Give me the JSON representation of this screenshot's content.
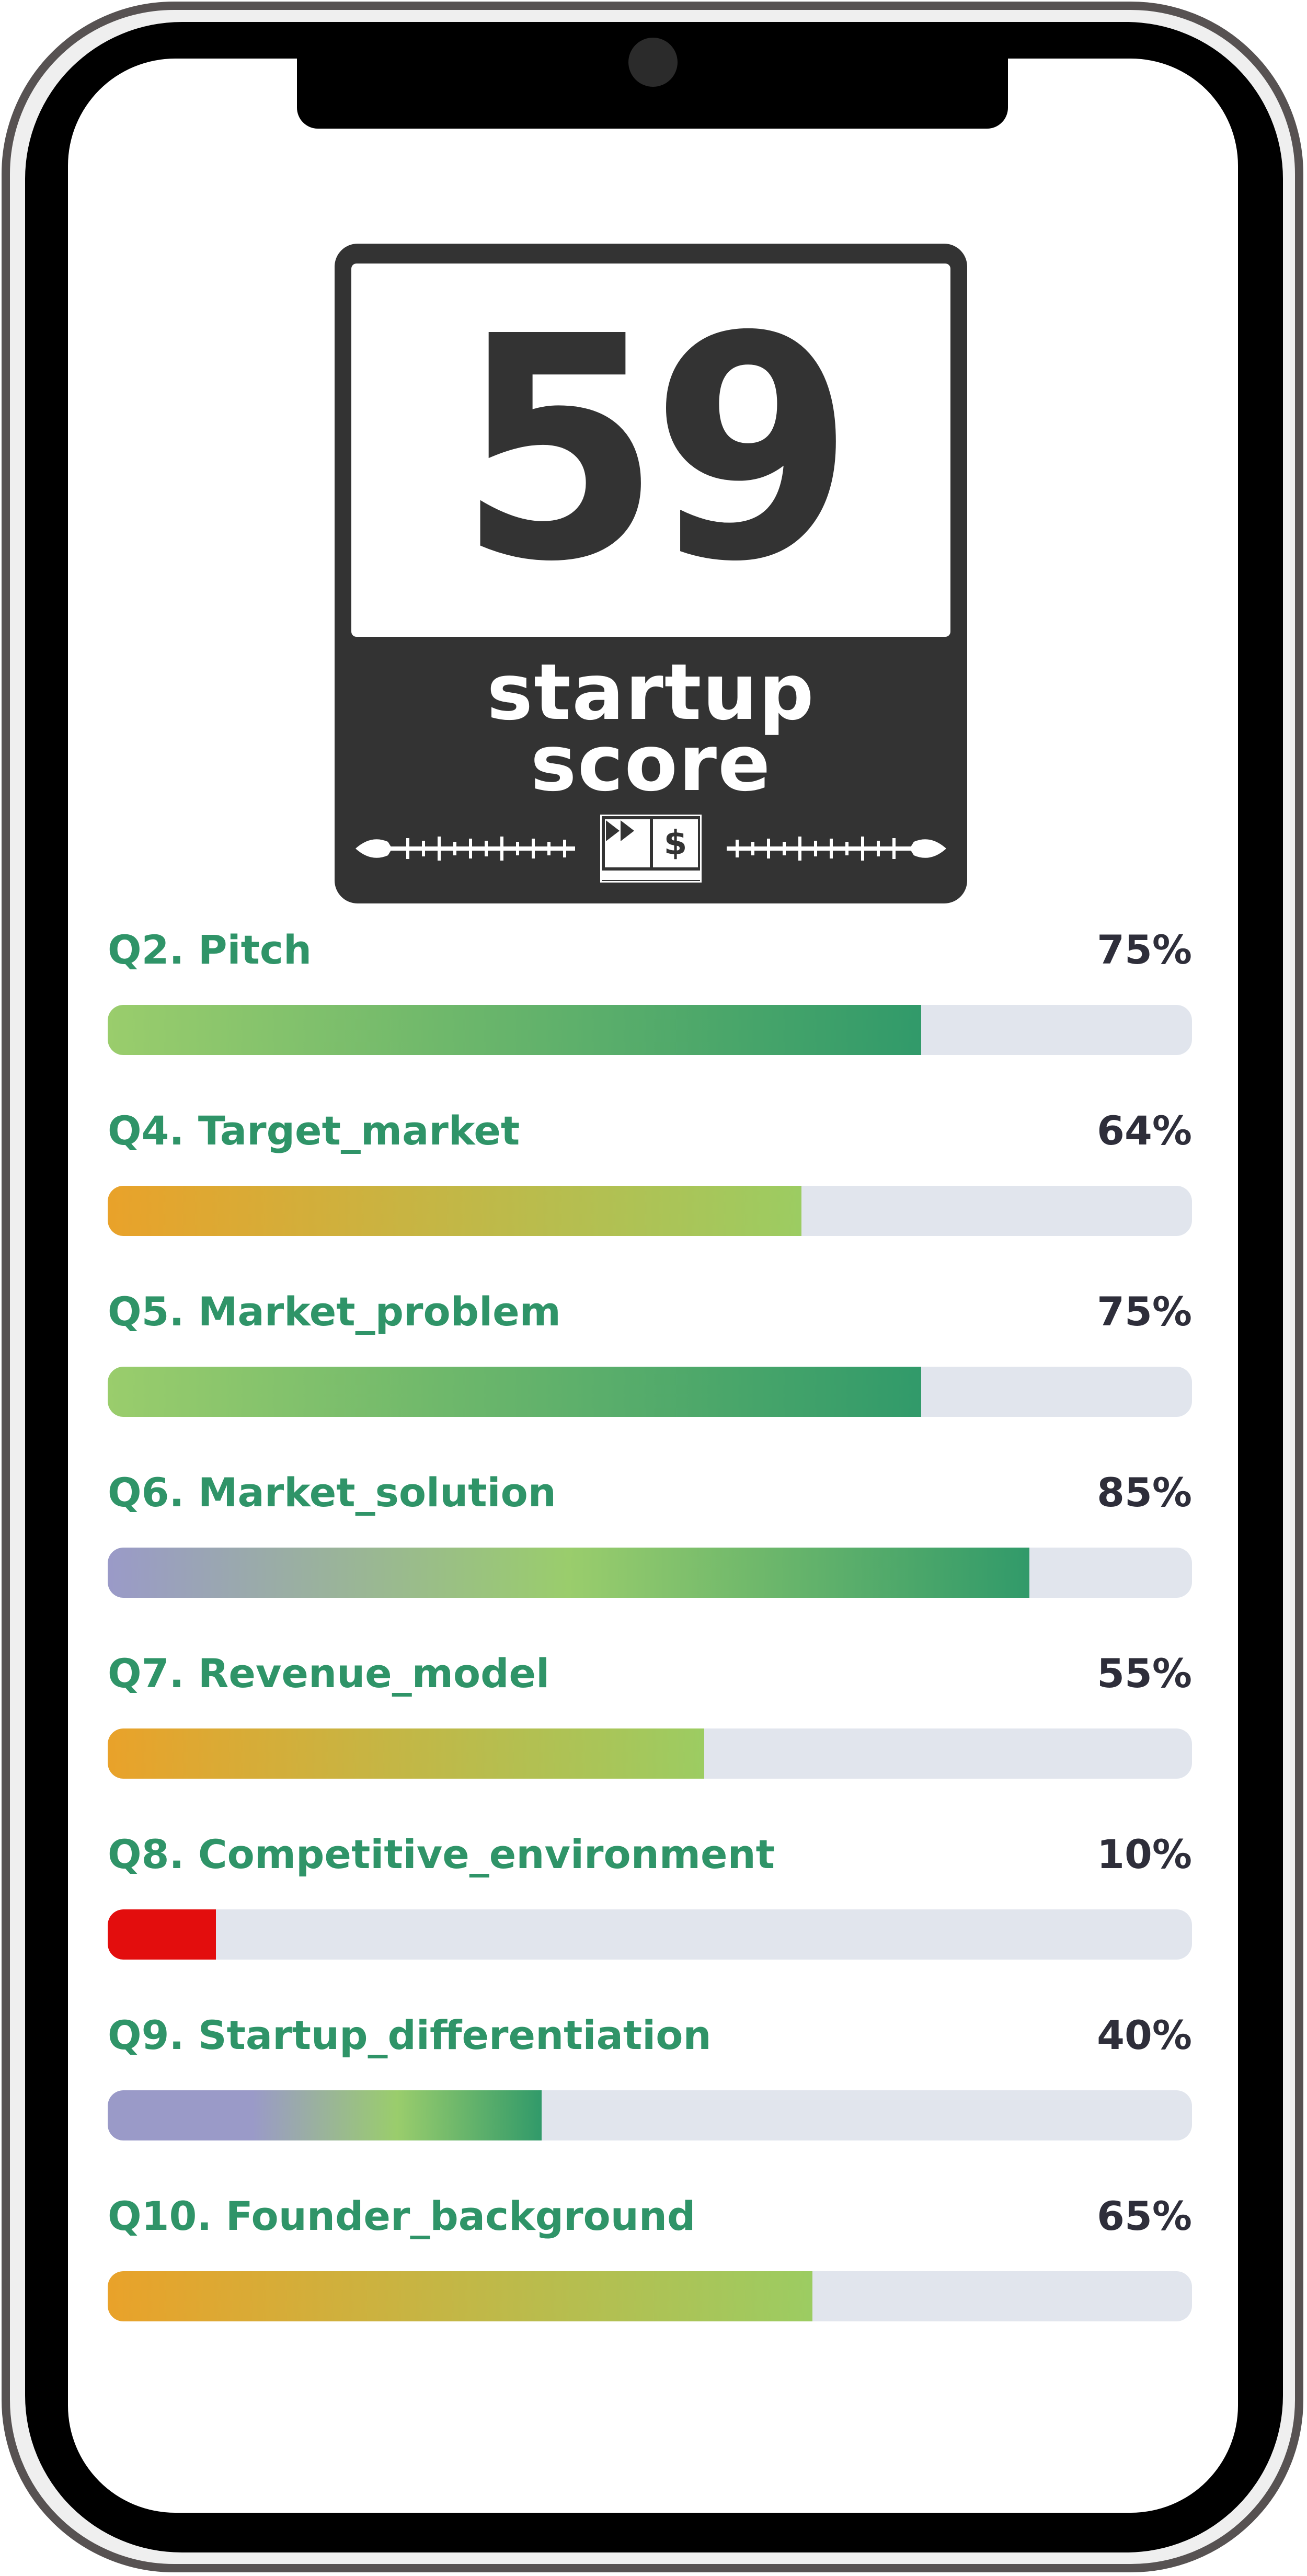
{
  "badge": {
    "score": "59",
    "title_line1": "startup",
    "title_line2": "score",
    "logo_left_icon": "fast-forward-icon",
    "logo_right_symbol": "$"
  },
  "scores": [
    {
      "label": "Q2. Pitch",
      "percent_text": "75%",
      "value": 75,
      "gradient": [
        "#9acd6c",
        "#319a6a"
      ]
    },
    {
      "label": "Q4. Target_market",
      "percent_text": "64%",
      "value": 64,
      "gradient": [
        "#e9a22a",
        "#9ccc62"
      ]
    },
    {
      "label": "Q5. Market_problem",
      "percent_text": "75%",
      "value": 75,
      "gradient": [
        "#9acd6c",
        "#319a6a"
      ]
    },
    {
      "label": "Q6. Market_solution",
      "percent_text": "85%",
      "value": 85,
      "gradient": [
        "#9a9ac8",
        "#9acd6c",
        "#319a6a"
      ]
    },
    {
      "label": "Q7. Revenue_model",
      "percent_text": "55%",
      "value": 55,
      "gradient": [
        "#e9a22a",
        "#9ccc62"
      ]
    },
    {
      "label": "Q8. Competitive_environment",
      "percent_text": "10%",
      "value": 10,
      "gradient": [
        "#e30d0d",
        "#e30d0d"
      ]
    },
    {
      "label": "Q9. Startup_differentiation",
      "percent_text": "40%",
      "value": 40,
      "gradient": [
        "#9a9ac8",
        "#9a9ac8",
        "#9acd6c",
        "#319a6a"
      ]
    },
    {
      "label": "Q10. Founder_background",
      "percent_text": "65%",
      "value": 65,
      "gradient": [
        "#e9a22a",
        "#9ccc62"
      ]
    }
  ],
  "colors": {
    "label": "#2f9468",
    "percent": "#2e2e3a",
    "track": "#e1e5ed",
    "badge": "#333333"
  }
}
